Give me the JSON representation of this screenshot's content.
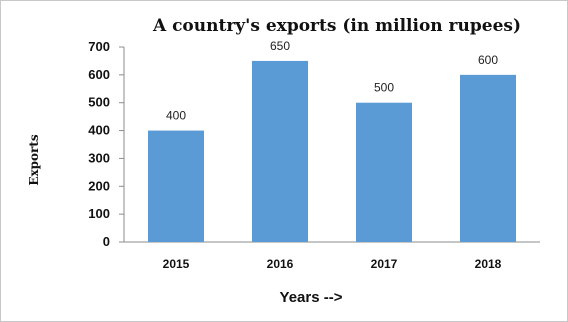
{
  "chart_data": {
    "type": "bar",
    "title": "A country's exports (in million rupees)",
    "xlabel": "Years -->",
    "ylabel": "Exports",
    "categories": [
      "2015",
      "2016",
      "2017",
      "2018"
    ],
    "values": [
      400,
      650,
      500,
      600
    ],
    "data_labels": [
      "400",
      "650",
      "500",
      "600"
    ],
    "yticks": [
      "0",
      "100",
      "200",
      "300",
      "400",
      "500",
      "600",
      "700"
    ],
    "ylim": [
      0,
      700
    ],
    "grid": false,
    "legend": "none",
    "bar_color": "#5b9bd5"
  }
}
